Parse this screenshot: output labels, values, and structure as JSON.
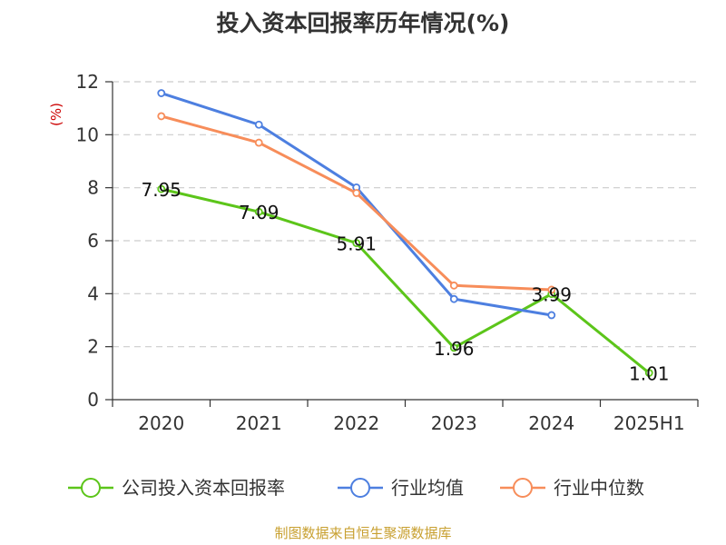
{
  "chart_data": {
    "type": "line",
    "title": "投入资本回报率历年情况(%)",
    "ylabel": "(%)",
    "xlabel": "",
    "ylim": [
      0,
      12
    ],
    "yticks": [
      0,
      2,
      4,
      6,
      8,
      10,
      12
    ],
    "categories": [
      "2020",
      "2021",
      "2022",
      "2023",
      "2024",
      "2025H1"
    ],
    "grid": true,
    "legend_position": "bottom",
    "series": [
      {
        "name": "公司投入资本回报率",
        "color": "#5cc51a",
        "values": [
          7.95,
          7.09,
          5.91,
          1.96,
          3.99,
          1.01
        ],
        "labels": [
          "7.95",
          "7.09",
          "5.91",
          "1.96",
          "3.99",
          "1.01"
        ]
      },
      {
        "name": "行业均值",
        "color": "#4d7fe0",
        "values": [
          11.57,
          10.38,
          8.01,
          3.8,
          3.19,
          null
        ]
      },
      {
        "name": "行业中位数",
        "color": "#f78d5a",
        "values": [
          10.7,
          9.7,
          7.8,
          4.31,
          4.15,
          null
        ]
      }
    ]
  },
  "source": "制图数据来自恒生聚源数据库",
  "colors": {
    "title": "#333333",
    "ylabel": "#cc0000",
    "axis": "#333333",
    "grid": "#cccccc",
    "source": "#c8a030"
  }
}
